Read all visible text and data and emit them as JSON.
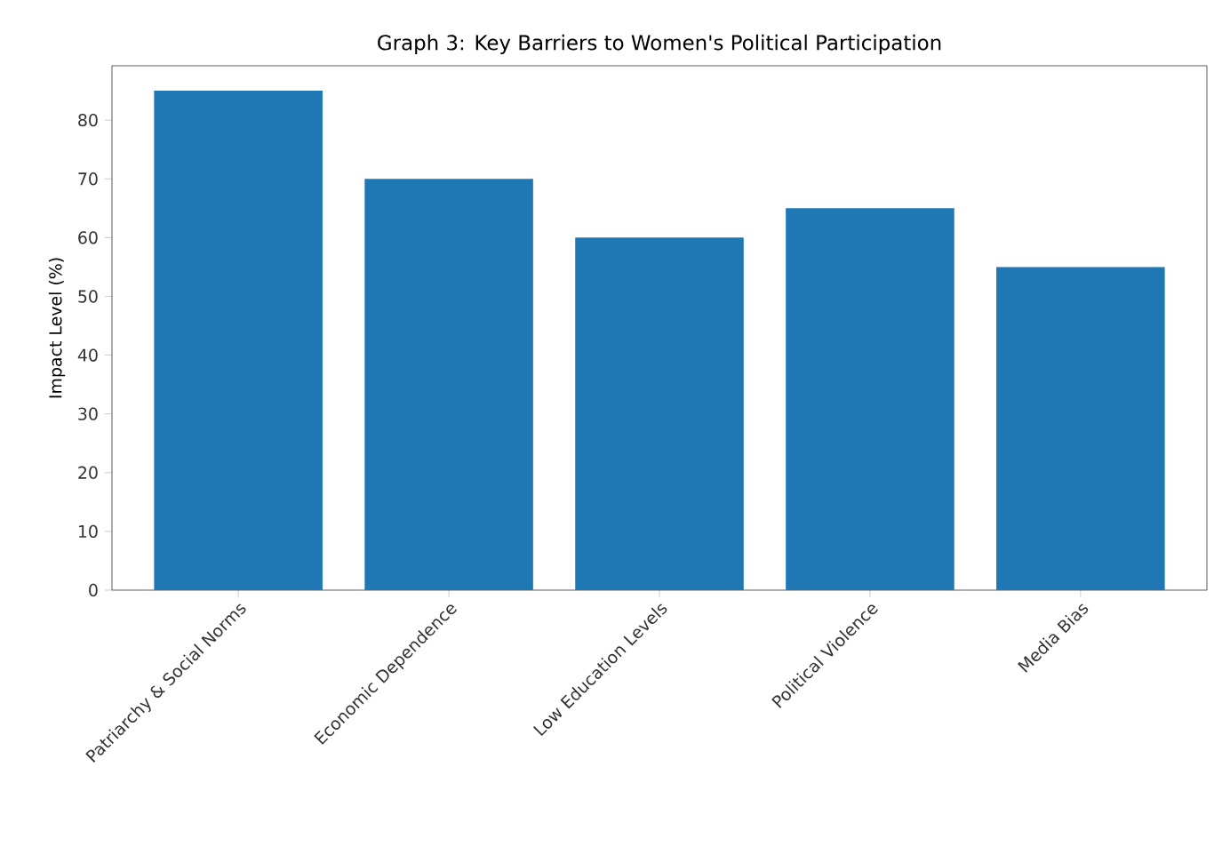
{
  "chart_data": {
    "type": "bar",
    "title": "Graph 3: Key Barriers to Women's Political Participation",
    "ylabel": "Impact Level (%)",
    "categories": [
      "Patriarchy & Social Norms",
      "Economic Dependence",
      "Low Education Levels",
      "Political Violence",
      "Media Bias"
    ],
    "values": [
      85,
      70,
      60,
      65,
      55
    ],
    "color": "#1f77b4",
    "ylim": [
      0,
      89.25
    ],
    "yticks": [
      0,
      10,
      20,
      30,
      40,
      50,
      60,
      70,
      80
    ]
  }
}
